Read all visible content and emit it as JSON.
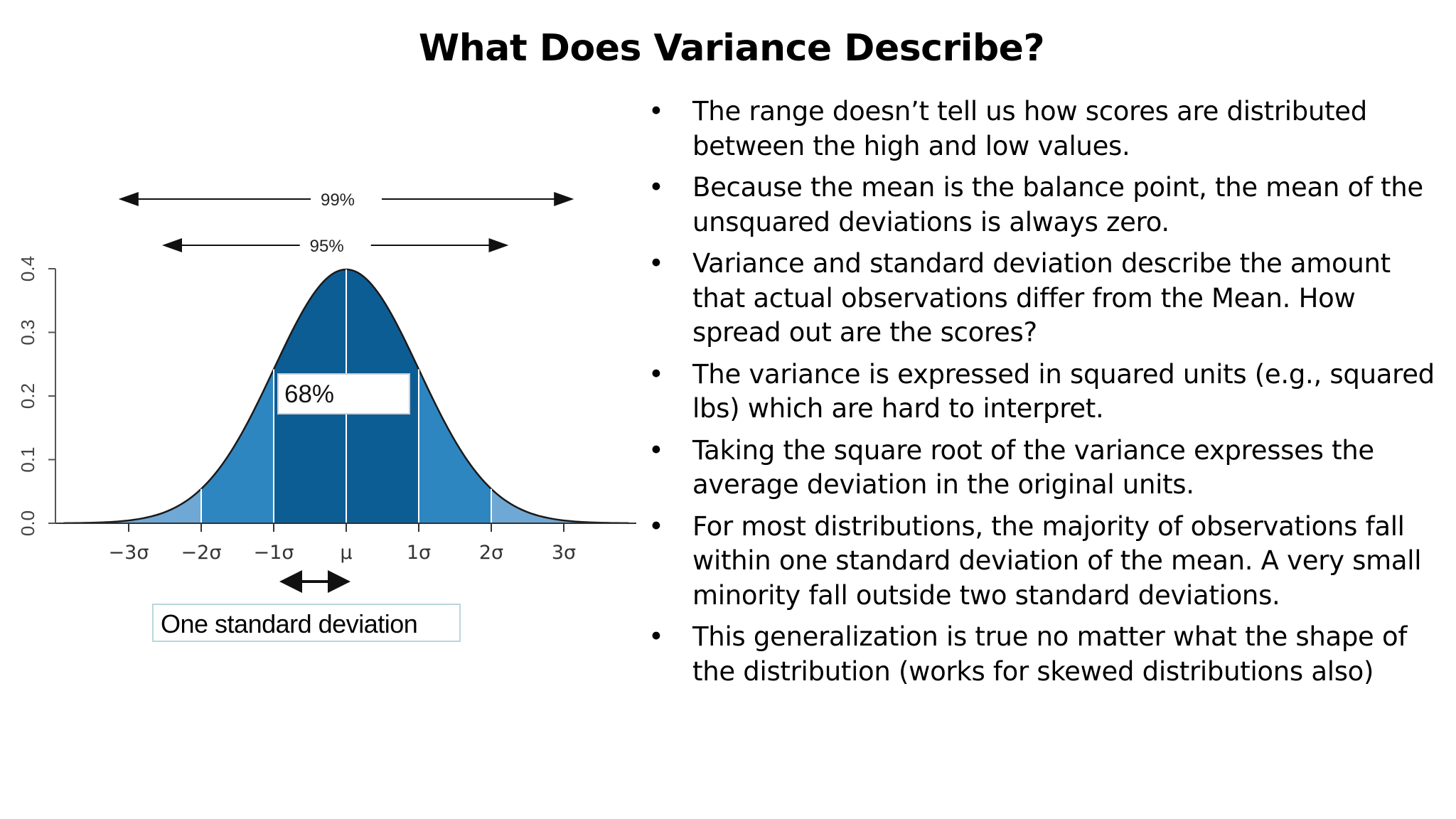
{
  "slide": {
    "title": "What Does Variance Describe?",
    "bullets": [
      "The range doesn’t tell us how scores are distributed between the high and low values.",
      "Because the mean is the balance point, the mean of the unsquared deviations is always zero.",
      "Variance and standard deviation describe the amount that actual observations differ from the Mean. How spread out are the scores?",
      "The variance is expressed in squared units (e.g., squared lbs) which are hard to interpret.",
      "Taking the square root of the variance expresses the average deviation in the original units.",
      "For most distributions, the majority of observations fall within one standard deviation of the mean. A very small minority fall outside two standard deviations.",
      "This generalization is true no matter what the shape of the distribution (works for skewed distributions also)"
    ],
    "bullet_glyph": "•",
    "sd_label": "One standard deviation"
  },
  "chart_data": {
    "type": "area",
    "curve": "standard normal density",
    "x_tick_labels": [
      "−3σ",
      "−2σ",
      "−1σ",
      "μ",
      "1σ",
      "2σ",
      "3σ"
    ],
    "x_tick_values": [
      -3,
      -2,
      -1,
      0,
      1,
      2,
      3
    ],
    "xlim": [
      -4,
      4
    ],
    "ylim": [
      0,
      0.4
    ],
    "y_ticks": [
      "0.0",
      "0.1",
      "0.2",
      "0.3",
      "0.4"
    ],
    "y_tick_values": [
      0,
      0.1,
      0.2,
      0.3,
      0.4
    ],
    "bands": [
      {
        "from": -3,
        "to": -2,
        "color": "#6fa8d4"
      },
      {
        "from": -2,
        "to": -1,
        "color": "#2e86c1"
      },
      {
        "from": -1,
        "to": 1,
        "color": "#0d5d95"
      },
      {
        "from": 1,
        "to": 2,
        "color": "#2e86c1"
      },
      {
        "from": 2,
        "to": 3,
        "color": "#6fa8d4"
      }
    ],
    "annotations": [
      {
        "label": "99%",
        "from": -3.1,
        "to": 3.1
      },
      {
        "label": "95%",
        "from": -2.5,
        "to": 2.2
      },
      {
        "label": "68%",
        "region": [
          -1,
          1
        ]
      }
    ],
    "grid": false,
    "legend": "none"
  }
}
